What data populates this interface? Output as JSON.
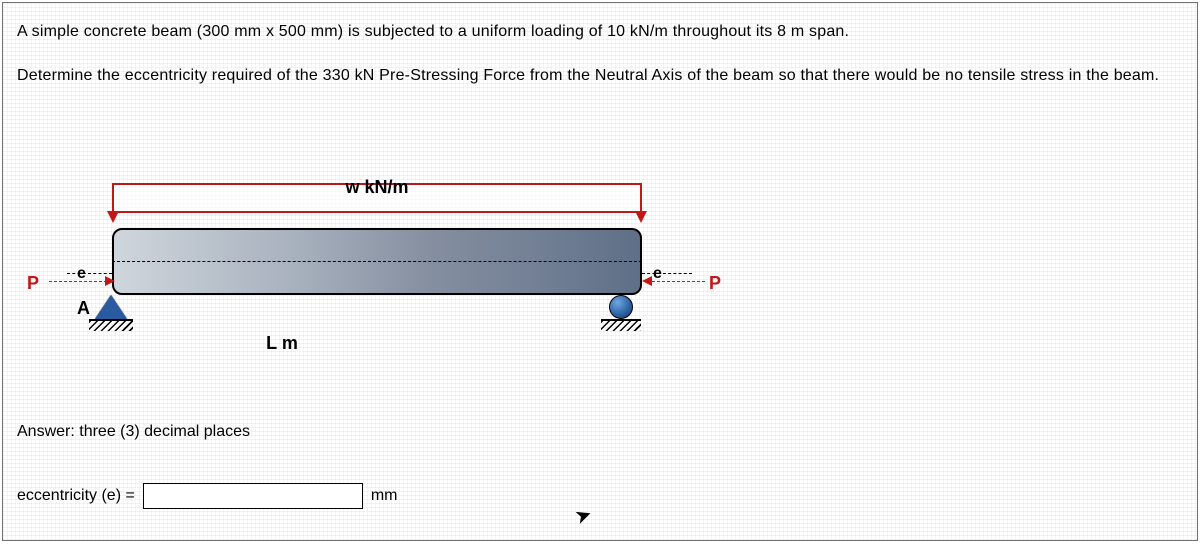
{
  "problem": {
    "line1": "A simple concrete beam (300 mm x 500 mm) is subjected to a uniform loading of 10 kN/m throughout its 8 m span.",
    "line2": "Determine the eccentricity required of the 330 kN Pre-Stressing Force from the Neutral Axis of the beam so that there would be no tensile stress in the beam."
  },
  "figure": {
    "load_label": "w kN/m",
    "span_label": "L m",
    "P_left": "P",
    "P_right": "P",
    "e_left": "e",
    "e_right": "e",
    "supportA": "A",
    "colors": {
      "load_border": "#c01818",
      "beam_gradient_start": "#cfd6dc",
      "beam_gradient_end": "#5f6f87",
      "support_fill": "#2a5aa0",
      "P_color": "#c01818"
    },
    "beam": {
      "width_mm": 300,
      "depth_mm": 500,
      "span_m": 8,
      "w_kNpm": 10,
      "P_kN": 330
    }
  },
  "answer": {
    "instruction": "Answer: three (3) decimal places",
    "label": "eccentricity (e) =",
    "unit": "mm",
    "value": ""
  }
}
